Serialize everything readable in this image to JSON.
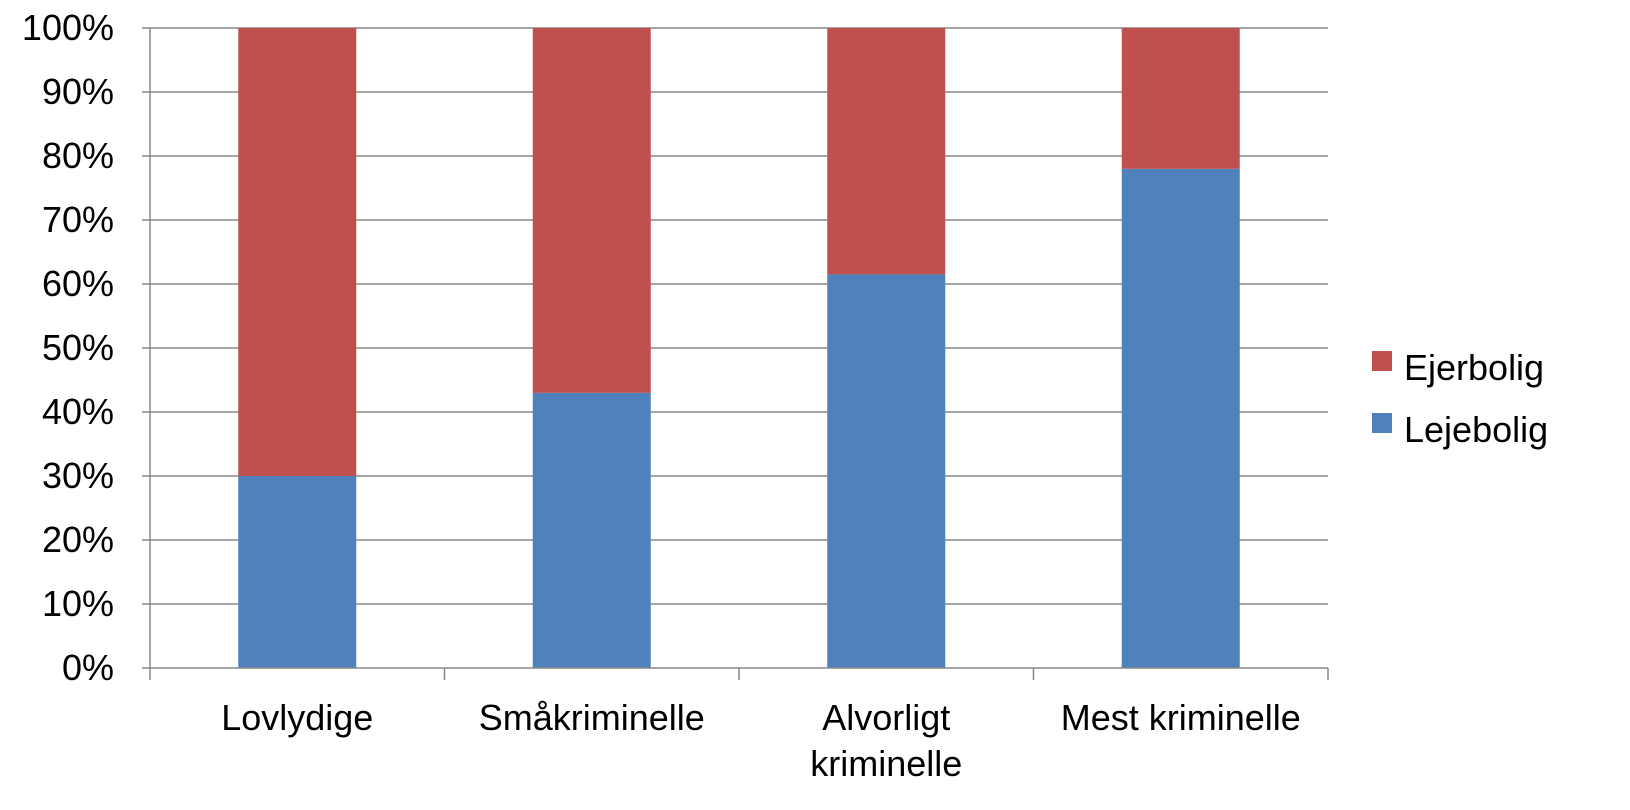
{
  "chart_data": {
    "type": "bar",
    "stacked": true,
    "percent": true,
    "categories": [
      [
        "Lovlydige"
      ],
      [
        "Småkriminelle"
      ],
      [
        "Alvorligt",
        "kriminelle"
      ],
      [
        "Mest kriminelle"
      ]
    ],
    "series": [
      {
        "name": "Lejebolig",
        "values": [
          30,
          43,
          61.5,
          78
        ],
        "color": "#4F81BD"
      },
      {
        "name": "Ejerbolig",
        "values": [
          70,
          57,
          38.5,
          22
        ],
        "color": "#C0504D"
      }
    ],
    "ylim": [
      0,
      100
    ],
    "yticks": [
      "0%",
      "10%",
      "20%",
      "30%",
      "40%",
      "50%",
      "60%",
      "70%",
      "80%",
      "90%",
      "100%"
    ],
    "grid": true,
    "legend": {
      "position": "right",
      "order": [
        "Ejerbolig",
        "Lejebolig"
      ]
    }
  }
}
